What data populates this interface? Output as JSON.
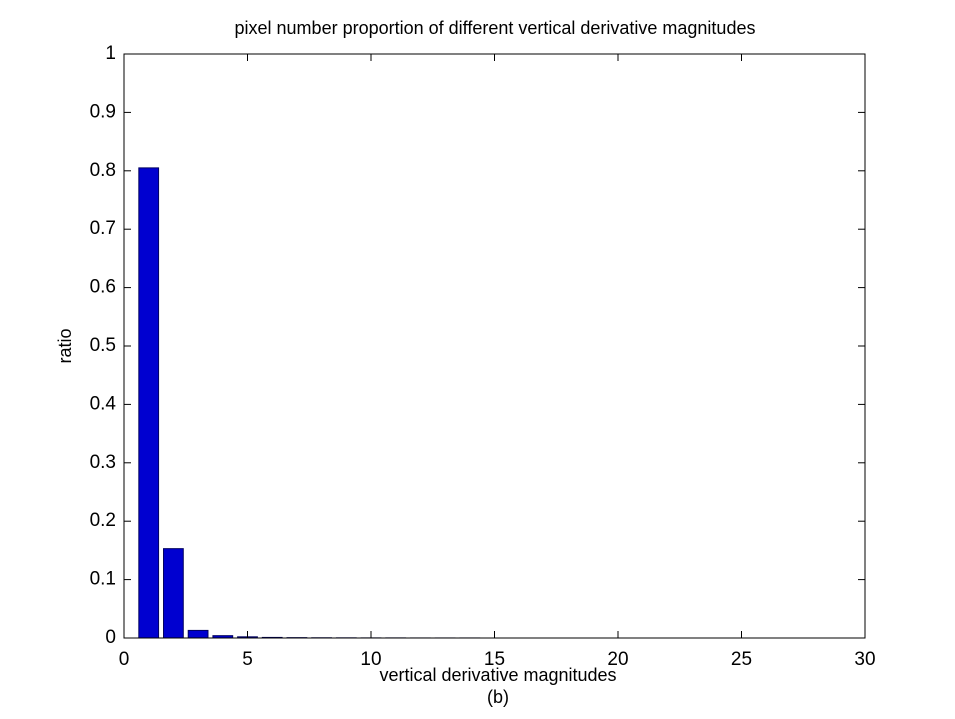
{
  "chart_data": {
    "type": "bar",
    "title": "pixel number proportion of different vertical derivative magnitudes",
    "x_label": "vertical derivative magnitudes",
    "caption": "(b)",
    "y_label": "ratio",
    "x": [
      1,
      2,
      3,
      4,
      5,
      6,
      7,
      8,
      9,
      10,
      11,
      12,
      13,
      14,
      15,
      16,
      17,
      18,
      19,
      20,
      21,
      22,
      23,
      24,
      25,
      26,
      27,
      28,
      29
    ],
    "values": [
      0.805,
      0.153,
      0.013,
      0.004,
      0.002,
      0.001,
      0.0006,
      0.0004,
      0.0003,
      0.0002,
      0.0002,
      0.0001,
      0.0001,
      0.0001,
      0,
      0,
      0,
      0,
      0,
      0,
      0,
      0,
      0,
      0,
      0,
      0,
      0,
      0,
      0
    ],
    "color": "#0000d0",
    "xlim": [
      0,
      30
    ],
    "xticks": [
      0,
      5,
      10,
      15,
      20,
      25,
      30
    ],
    "ylim": [
      0,
      1
    ],
    "yticks": [
      0,
      0.1,
      0.2,
      0.3,
      0.4,
      0.5,
      0.6,
      0.7,
      0.8,
      0.9,
      1
    ],
    "grid": false
  }
}
